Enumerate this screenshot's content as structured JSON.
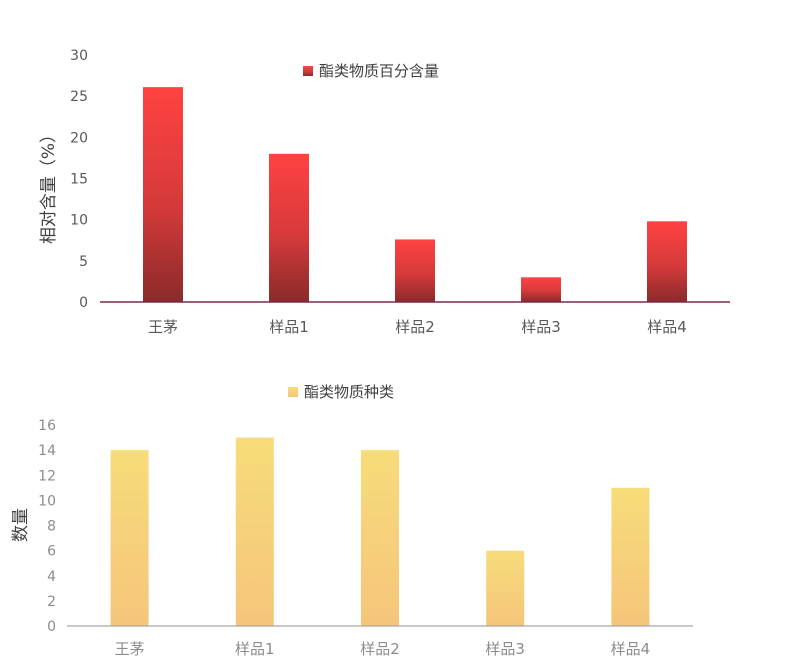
{
  "chart_data": [
    {
      "type": "bar",
      "categories": [
        "王茅",
        "样品1",
        "样品2",
        "样品3",
        "样品4"
      ],
      "series": [
        {
          "name": "酯类物质百分含量",
          "values": [
            26.1,
            18.0,
            7.6,
            3.0,
            9.8
          ]
        }
      ],
      "title": "",
      "xlabel": "",
      "ylabel": "相对含量（%）",
      "ylim": [
        0,
        30
      ],
      "yticks": [
        0,
        5,
        10,
        15,
        20,
        25,
        30
      ],
      "grid": false,
      "legend": "top-center",
      "colors": {
        "bar_top": "#ff4242",
        "bar_bottom": "#8a2a2a",
        "axis": "#7a2a4a"
      }
    },
    {
      "type": "bar",
      "categories": [
        "王茅",
        "样品1",
        "样品2",
        "样品3",
        "样品4"
      ],
      "series": [
        {
          "name": "酯类物质种类",
          "values": [
            14,
            15,
            14,
            6,
            11
          ]
        }
      ],
      "title": "",
      "xlabel": "",
      "ylabel": "数量",
      "ylim": [
        0,
        16
      ],
      "yticks": [
        0,
        2,
        4,
        6,
        8,
        10,
        12,
        14,
        16
      ],
      "grid": false,
      "legend": "top-center",
      "colors": {
        "bar_top": "#f7dc7a",
        "bar_bottom": "#f5c57a",
        "axis": "#a6a6a6"
      }
    }
  ]
}
